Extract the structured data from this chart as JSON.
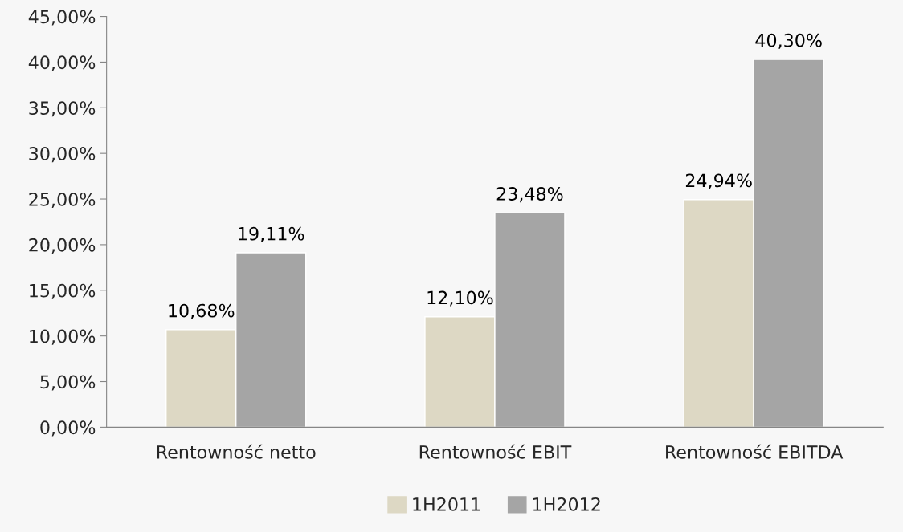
{
  "chart_data": {
    "type": "bar",
    "categories": [
      "Rentowność netto",
      "Rentowność EBIT",
      "Rentowność EBITDA"
    ],
    "series": [
      {
        "name": "1H2011",
        "color": "#ddd8c4",
        "values": [
          10.68,
          12.1,
          24.94
        ],
        "value_labels": [
          "10,68%",
          "12,10%",
          "24,94%"
        ]
      },
      {
        "name": "1H2012",
        "color": "#a5a5a5",
        "values": [
          19.11,
          23.48,
          40.3
        ],
        "value_labels": [
          "19,11%",
          "23,48%",
          "40,30%"
        ]
      }
    ],
    "ylim": [
      0,
      45
    ],
    "yticks": [
      {
        "value": 0,
        "label": "0,00%"
      },
      {
        "value": 5,
        "label": "5,00%"
      },
      {
        "value": 10,
        "label": "10,00%"
      },
      {
        "value": 15,
        "label": "15,00%"
      },
      {
        "value": 20,
        "label": "20,00%"
      },
      {
        "value": 25,
        "label": "25,00%"
      },
      {
        "value": 30,
        "label": "30,00%"
      },
      {
        "value": 35,
        "label": "35,00%"
      },
      {
        "value": 40,
        "label": "40,00%"
      },
      {
        "value": 45,
        "label": "45,00%"
      }
    ],
    "grid": false,
    "legend": "bottom"
  }
}
